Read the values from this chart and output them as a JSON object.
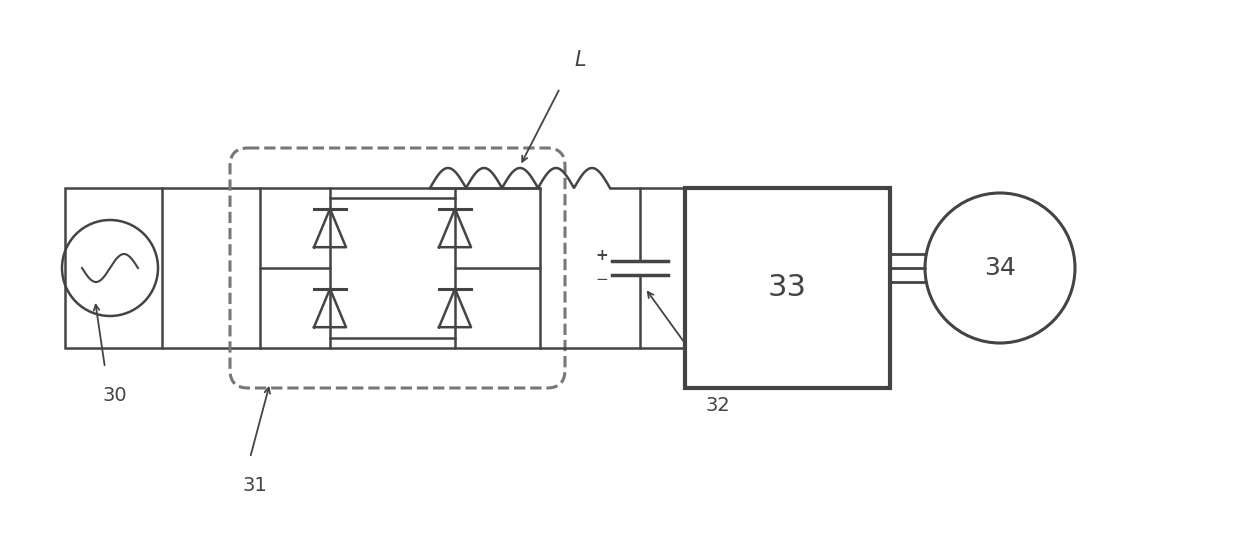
{
  "bg_color": "#ffffff",
  "line_color": "#444444",
  "dashed_color": "#777777",
  "fig_width": 12.4,
  "fig_height": 5.36
}
